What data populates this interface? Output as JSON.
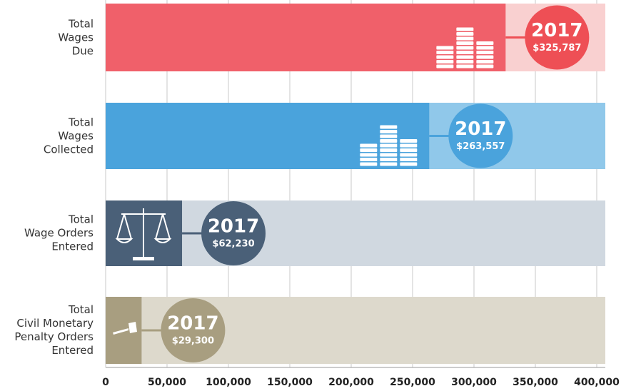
{
  "chart_data": {
    "type": "hbar",
    "categories": [
      "Total\nWages\nDue",
      "Total\nWages\nCollected",
      "Total\nWage Orders\nEntered",
      "Total\nCivil Monetary\nPenalty Orders\nEntered"
    ],
    "series": [
      {
        "name": "2017",
        "values": [
          325787,
          263557,
          62230,
          29300
        ],
        "value_labels": [
          "$325,787",
          "$263,557",
          "$62,230",
          "$29,300"
        ],
        "colors": [
          "#f0606a",
          "#4aa3dc",
          "#4a6078",
          "#a89e80"
        ]
      }
    ],
    "track_colors": [
      "#f9d0d0",
      "#90c8ea",
      "#d0d8e0",
      "#ddd9cc"
    ],
    "circle_colors": [
      "#ee4f55",
      "#4aa3dc",
      "#4a6078",
      "#a89e80"
    ],
    "xlim": [
      0,
      400000
    ],
    "xticks": [
      0,
      {
        "value": 50000,
        "label": "50,000"
      },
      {
        "value": 100000,
        "label": "100,000"
      },
      {
        "value": 150000,
        "label": "150,000"
      },
      {
        "value": 200000,
        "label": "200,000"
      },
      {
        "value": 250000,
        "label": "250,000"
      },
      {
        "value": 300000,
        "label": "300,000"
      },
      {
        "value": 350000,
        "label": "350,000"
      },
      {
        "value": 400000,
        "label": "400,000"
      }
    ],
    "grid": true
  }
}
